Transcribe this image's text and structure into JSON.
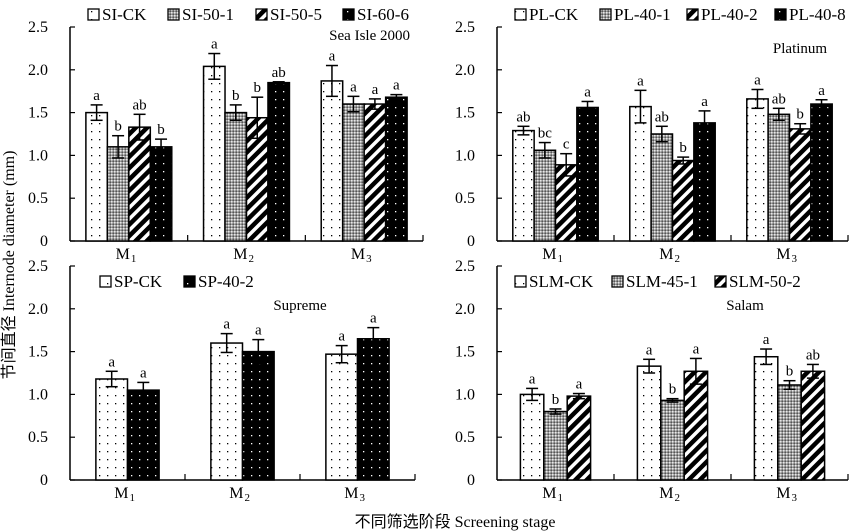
{
  "chart_data": [
    {
      "type": "bar",
      "panel_label": "Sea Isle 2000",
      "categories": [
        "M1",
        "M2",
        "M3"
      ],
      "ylim": [
        0,
        2.5
      ],
      "yticks": [
        "0",
        "0.5",
        "1.0",
        "1.5",
        "2.0",
        "2.5"
      ],
      "legend_position": "top",
      "series": [
        {
          "name": "SI-CK",
          "pattern": "dots",
          "values": [
            1.5,
            2.04,
            1.87
          ],
          "errors": [
            0.09,
            0.15,
            0.18
          ],
          "letters": [
            "a",
            "a",
            "a"
          ]
        },
        {
          "name": "SI-50-1",
          "pattern": "checker",
          "values": [
            1.1,
            1.5,
            1.6
          ],
          "errors": [
            0.13,
            0.09,
            0.09
          ],
          "letters": [
            "b",
            "b",
            "a"
          ]
        },
        {
          "name": "SI-50-5",
          "pattern": "stripes",
          "values": [
            1.33,
            1.44,
            1.6
          ],
          "errors": [
            0.15,
            0.24,
            0.06
          ],
          "letters": [
            "ab",
            "b",
            "a"
          ]
        },
        {
          "name": "SI-60-6",
          "pattern": "black-dots",
          "values": [
            1.1,
            1.85,
            1.68
          ],
          "errors": [
            0.09,
            0.01,
            0.03
          ],
          "letters": [
            "b",
            "ab",
            "a"
          ]
        }
      ]
    },
    {
      "type": "bar",
      "panel_label": "Platinum",
      "categories": [
        "M1",
        "M2",
        "M3"
      ],
      "ylim": [
        0,
        2.5
      ],
      "yticks": [
        "0",
        "0.5",
        "1.0",
        "1.5",
        "2.0",
        "2.5"
      ],
      "legend_position": "top",
      "series": [
        {
          "name": "PL-CK",
          "pattern": "dots",
          "values": [
            1.29,
            1.57,
            1.66
          ],
          "errors": [
            0.05,
            0.19,
            0.11
          ],
          "letters": [
            "ab",
            "a",
            "a"
          ]
        },
        {
          "name": "PL-40-1",
          "pattern": "checker",
          "values": [
            1.06,
            1.25,
            1.48
          ],
          "errors": [
            0.09,
            0.09,
            0.07
          ],
          "letters": [
            "bc",
            "ab",
            "ab"
          ]
        },
        {
          "name": "PL-40-2",
          "pattern": "stripes",
          "values": [
            0.89,
            0.94,
            1.31
          ],
          "errors": [
            0.13,
            0.04,
            0.06
          ],
          "letters": [
            "c",
            "b",
            "b"
          ]
        },
        {
          "name": "PL-40-8",
          "pattern": "black-dots",
          "values": [
            1.56,
            1.38,
            1.6
          ],
          "errors": [
            0.07,
            0.14,
            0.05
          ],
          "letters": [
            "a",
            "a",
            "a"
          ]
        }
      ]
    },
    {
      "type": "bar",
      "panel_label": "Supreme",
      "categories": [
        "M1",
        "M2",
        "M3"
      ],
      "ylim": [
        0,
        2.5
      ],
      "yticks": [
        "0",
        "0.5",
        "1.0",
        "1.5",
        "2.0",
        "2.5"
      ],
      "legend_position": "top-left",
      "series": [
        {
          "name": "SP-CK",
          "pattern": "dots",
          "values": [
            1.18,
            1.6,
            1.47
          ],
          "errors": [
            0.09,
            0.11,
            0.1
          ],
          "letters": [
            "a",
            "a",
            "a"
          ]
        },
        {
          "name": "SP-40-2",
          "pattern": "black-dots",
          "values": [
            1.05,
            1.5,
            1.65
          ],
          "errors": [
            0.09,
            0.14,
            0.13
          ],
          "letters": [
            "a",
            "a",
            "a"
          ]
        }
      ]
    },
    {
      "type": "bar",
      "panel_label": "Salam",
      "categories": [
        "M1",
        "M2",
        "M3"
      ],
      "ylim": [
        0,
        2.5
      ],
      "yticks": [
        "0",
        "0.5",
        "1.0",
        "1.5",
        "2.0",
        "2.5"
      ],
      "legend_position": "top",
      "series": [
        {
          "name": "SLM-CK",
          "pattern": "dots",
          "values": [
            1.0,
            1.33,
            1.44
          ],
          "errors": [
            0.07,
            0.08,
            0.09
          ],
          "letters": [
            "a",
            "a",
            "a"
          ]
        },
        {
          "name": "SLM-45-1",
          "pattern": "checker",
          "values": [
            0.8,
            0.93,
            1.11
          ],
          "errors": [
            0.03,
            0.02,
            0.05
          ],
          "letters": [
            "b",
            "b",
            "b"
          ]
        },
        {
          "name": "SLM-50-2",
          "pattern": "stripes",
          "values": [
            0.98,
            1.27,
            1.27
          ],
          "errors": [
            0.03,
            0.15,
            0.08
          ],
          "letters": [
            "a",
            "a",
            "ab"
          ]
        }
      ]
    }
  ],
  "ylabel": "节间直径 Internode diameter (mm)",
  "xlabel": "不同筛选阶段 Screening stage"
}
